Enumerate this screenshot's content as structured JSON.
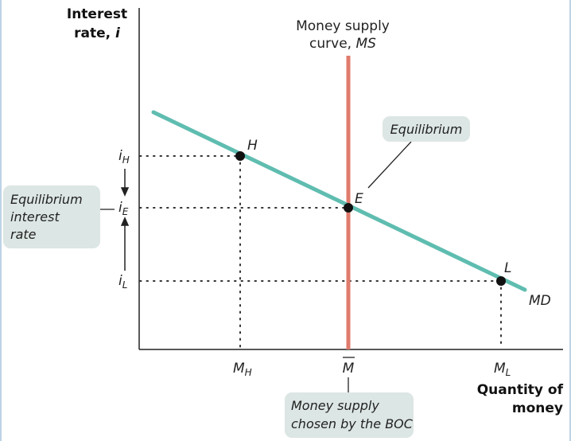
{
  "axes": {
    "y_title_line1": "Interest",
    "y_title_line2_main": "rate, ",
    "y_title_line2_var": "i",
    "x_title_line1": "Quantity of",
    "x_title_line2": "money"
  },
  "curves": {
    "ms_label_line1": "Money supply",
    "ms_label_line2_main": "curve, ",
    "ms_label_line2_var": "MS",
    "md_label": "MD"
  },
  "points": {
    "h": "H",
    "e": "E",
    "l": "L"
  },
  "y_ticks": {
    "high": {
      "base": "i",
      "sub": "H"
    },
    "eq": {
      "base": "i",
      "sub": "E"
    },
    "low": {
      "base": "i",
      "sub": "L"
    }
  },
  "x_ticks": {
    "high": {
      "base": "M",
      "sub": "H"
    },
    "bar": {
      "base": "M"
    },
    "low": {
      "base": "M",
      "sub": "L"
    }
  },
  "callouts": {
    "equilibrium": "Equilibrium",
    "rate_line1": "Equilibrium",
    "rate_line2": "interest",
    "rate_line3": "rate",
    "supply_line1": "Money supply",
    "supply_line2": "chosen by the BOC"
  },
  "colors": {
    "md_line": "#5fbdb0",
    "ms_line": "#e07b6c",
    "callout_fill": "#dce6e4",
    "point": "#111111"
  }
}
